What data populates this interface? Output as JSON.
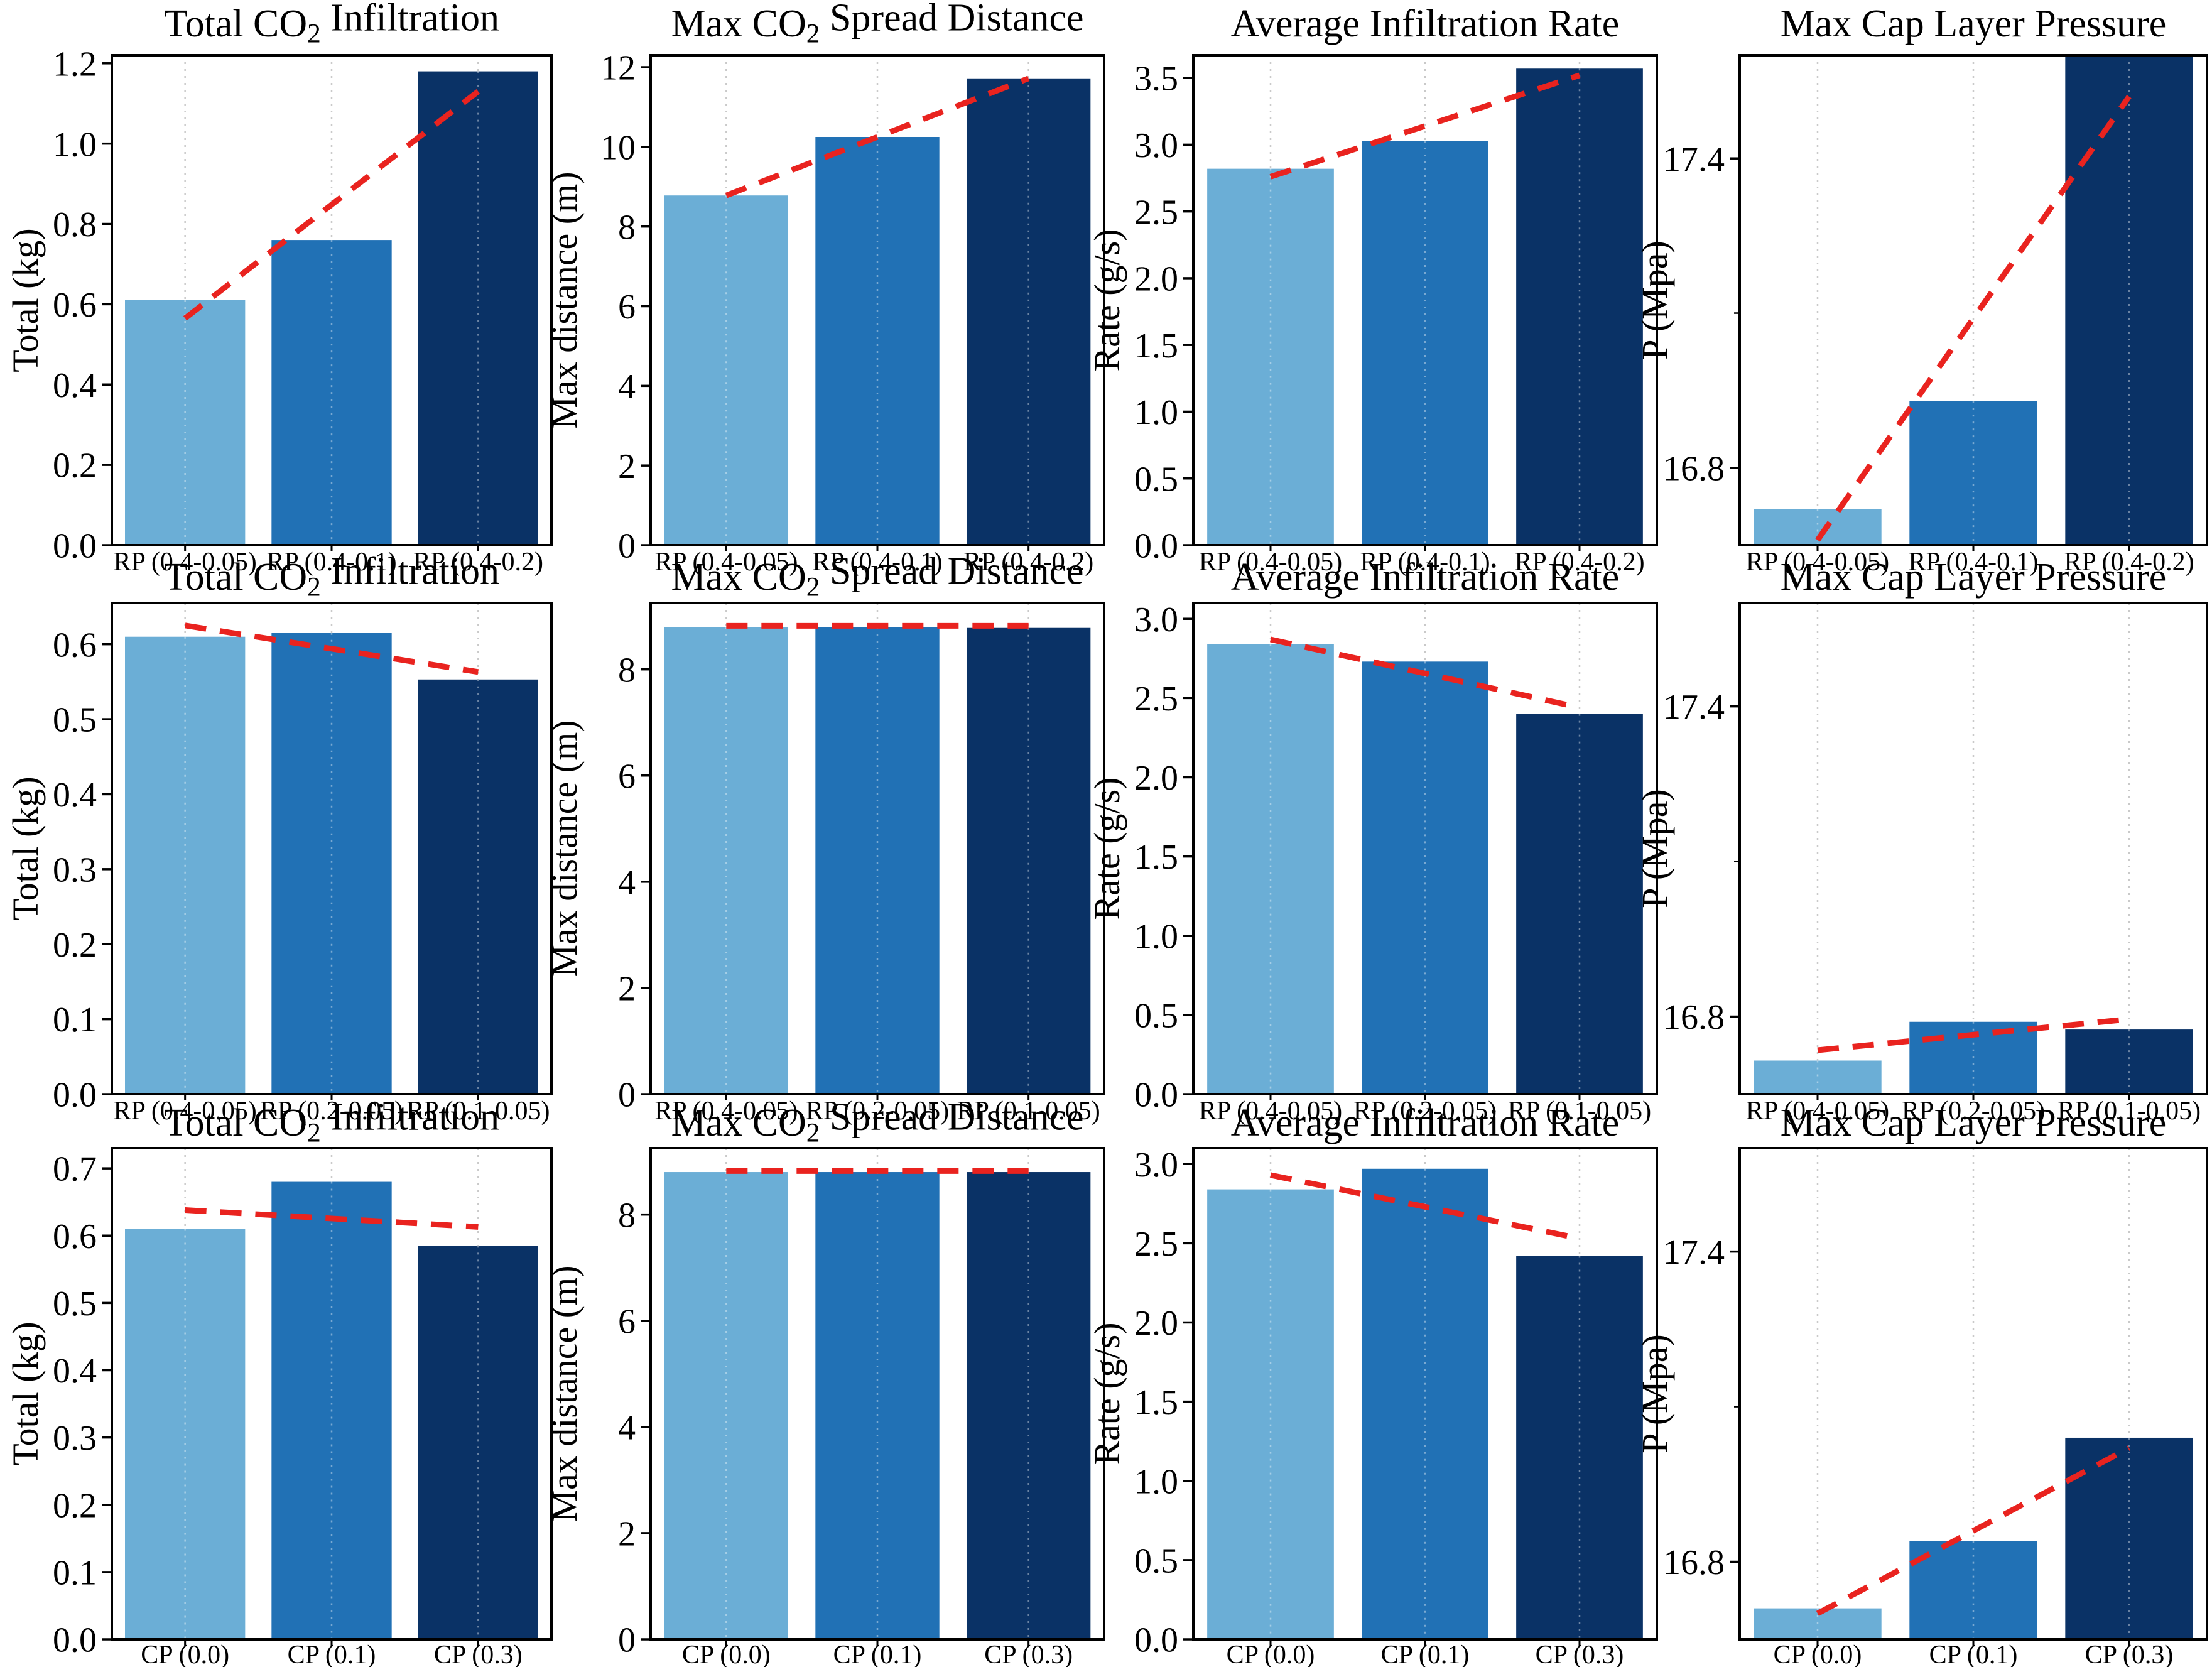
{
  "figure": {
    "background": "#ffffff",
    "bar_colors": [
      "#6baed6",
      "#2171b5",
      "#0a3266"
    ],
    "trend_color": "#e9231f",
    "grid_color": "#c9c9c9",
    "axis_color": "#000000",
    "text_color": "#000000"
  },
  "chart_data": [
    {
      "type": "bar",
      "title": "Total CO₂ Infiltration",
      "ylabel": "Total (kg)",
      "categories": [
        "RP (0.4-0.05)",
        "RP (0.4-0.1)",
        "RP (0.4-0.2)"
      ],
      "values": [
        0.61,
        0.76,
        1.18
      ],
      "yticks": [
        0,
        0.2,
        0.4,
        0.6,
        0.8,
        1.0,
        1.2
      ],
      "ytick_labels": [
        "0.0",
        "0.2",
        "0.4",
        "0.6",
        "0.8",
        "1.0",
        "1.2"
      ],
      "ylim": [
        0,
        1.22
      ],
      "trend": [
        0.565,
        0.848,
        1.13
      ],
      "legend_position": "none",
      "grid": "vertical-dotted"
    },
    {
      "type": "bar",
      "title": "Max CO₂ Spread Distance",
      "ylabel": "Max distance (m)",
      "categories": [
        "RP (0.4-0.05)",
        "RP (0.4-0.1)",
        "RP (0.4-0.2)"
      ],
      "values": [
        8.78,
        10.25,
        11.72
      ],
      "yticks": [
        0,
        2,
        4,
        6,
        8,
        10,
        12
      ],
      "ytick_labels": [
        "0",
        "2",
        "4",
        "6",
        "8",
        "10",
        "12"
      ],
      "ylim": [
        0,
        12.3
      ],
      "trend": [
        8.78,
        10.25,
        11.72
      ],
      "legend_position": "none",
      "grid": "vertical-dotted"
    },
    {
      "type": "bar",
      "title": "Average Infiltration Rate",
      "ylabel": "Rate (g/s)",
      "categories": [
        "RP (0.4-0.05)",
        "RP (0.4-0.1)",
        "RP (0.4-0.2)"
      ],
      "values": [
        2.82,
        3.03,
        3.57
      ],
      "yticks": [
        0,
        0.5,
        1.0,
        1.5,
        2.0,
        2.5,
        3.0,
        3.5
      ],
      "ytick_labels": [
        "0.0",
        "0.5",
        "1.0",
        "1.5",
        "2.0",
        "2.5",
        "3.0",
        "3.5"
      ],
      "ylim": [
        0,
        3.67
      ],
      "trend": [
        2.76,
        3.14,
        3.52
      ],
      "legend_position": "none",
      "grid": "vertical-dotted"
    },
    {
      "type": "bar",
      "title": "Max Cap Layer Pressure",
      "ylabel": "P (Mpa)",
      "categories": [
        "RP (0.4-0.05)",
        "RP (0.4-0.1)",
        "RP (0.4-0.2)"
      ],
      "values": [
        16.72,
        16.93,
        17.72
      ],
      "yticks": [
        16.8,
        17.4
      ],
      "ytick_labels": [
        "16.8",
        "17.4"
      ],
      "ylim": [
        16.65,
        17.6
      ],
      "trend": [
        16.66,
        17.09,
        17.52
      ],
      "legend_position": "none",
      "grid": "vertical-dotted"
    },
    {
      "type": "bar",
      "title": "Total CO₂ Infiltration",
      "ylabel": "Total (kg)",
      "categories": [
        "RP (0.4-0.05)",
        "RP (0.2-0.05)",
        "RP (0.1-0.05)"
      ],
      "values": [
        0.61,
        0.615,
        0.553
      ],
      "yticks": [
        0,
        0.1,
        0.2,
        0.3,
        0.4,
        0.5,
        0.6
      ],
      "ytick_labels": [
        "0.0",
        "0.1",
        "0.2",
        "0.3",
        "0.4",
        "0.5",
        "0.6"
      ],
      "ylim": [
        0,
        0.655
      ],
      "trend": [
        0.625,
        0.594,
        0.563
      ],
      "legend_position": "none",
      "grid": "vertical-dotted"
    },
    {
      "type": "bar",
      "title": "Max CO₂ Spread Distance",
      "ylabel": "Max distance (m)",
      "categories": [
        "RP (0.4-0.05)",
        "RP (0.2-0.05)",
        "RP (0.1-0.05)"
      ],
      "values": [
        8.8,
        8.8,
        8.78
      ],
      "yticks": [
        0,
        2,
        4,
        6,
        8
      ],
      "ytick_labels": [
        "0",
        "2",
        "4",
        "6",
        "8"
      ],
      "ylim": [
        0,
        9.25
      ],
      "trend": [
        8.82,
        8.82,
        8.82
      ],
      "legend_position": "none",
      "grid": "vertical-dotted"
    },
    {
      "type": "bar",
      "title": "Average Infiltration Rate",
      "ylabel": "Rate (g/s)",
      "categories": [
        "RP (0.4-0.05)",
        "RP (0.2-0.05)",
        "RP (0.1-0.05)"
      ],
      "values": [
        2.84,
        2.73,
        2.4
      ],
      "yticks": [
        0,
        0.5,
        1.0,
        1.5,
        2.0,
        2.5,
        3.0
      ],
      "ytick_labels": [
        "0.0",
        "0.5",
        "1.0",
        "1.5",
        "2.0",
        "2.5",
        "3.0"
      ],
      "ylim": [
        0,
        3.1
      ],
      "trend": [
        2.87,
        2.655,
        2.44
      ],
      "legend_position": "none",
      "grid": "vertical-dotted"
    },
    {
      "type": "bar",
      "title": "Max Cap Layer Pressure",
      "ylabel": "P (Mpa)",
      "categories": [
        "RP (0.4-0.05)",
        "RP (0.2-0.05)",
        "RP (0.1-0.05)"
      ],
      "values": [
        16.715,
        16.79,
        16.775
      ],
      "yticks": [
        16.8,
        17.4
      ],
      "ytick_labels": [
        "16.8",
        "17.4"
      ],
      "ylim": [
        16.65,
        17.6
      ],
      "trend": [
        16.735,
        16.765,
        16.795
      ],
      "legend_position": "none",
      "grid": "vertical-dotted"
    },
    {
      "type": "bar",
      "title": "Total CO₂ Infiltration",
      "ylabel": "Total (kg)",
      "categories": [
        "CP (0.0)",
        "CP (0.1)",
        "CP (0.3)"
      ],
      "values": [
        0.61,
        0.68,
        0.585
      ],
      "yticks": [
        0,
        0.1,
        0.2,
        0.3,
        0.4,
        0.5,
        0.6,
        0.7
      ],
      "ytick_labels": [
        "0.0",
        "0.1",
        "0.2",
        "0.3",
        "0.4",
        "0.5",
        "0.6",
        "0.7"
      ],
      "ylim": [
        0,
        0.73
      ],
      "trend": [
        0.638,
        0.6255,
        0.613
      ],
      "legend_position": "none",
      "grid": "vertical-dotted"
    },
    {
      "type": "bar",
      "title": "Max CO₂ Spread Distance",
      "ylabel": "Max distance (m)",
      "categories": [
        "CP (0.0)",
        "CP (0.1)",
        "CP (0.3)"
      ],
      "values": [
        8.8,
        8.8,
        8.8
      ],
      "yticks": [
        0,
        2,
        4,
        6,
        8
      ],
      "ytick_labels": [
        "0",
        "2",
        "4",
        "6",
        "8"
      ],
      "ylim": [
        0,
        9.25
      ],
      "trend": [
        8.82,
        8.82,
        8.82
      ],
      "legend_position": "none",
      "grid": "vertical-dotted"
    },
    {
      "type": "bar",
      "title": "Average Infiltration Rate",
      "ylabel": "Rate (g/s)",
      "categories": [
        "CP (0.0)",
        "CP (0.1)",
        "CP (0.3)"
      ],
      "values": [
        2.84,
        2.97,
        2.42
      ],
      "yticks": [
        0,
        0.5,
        1.0,
        1.5,
        2.0,
        2.5,
        3.0
      ],
      "ytick_labels": [
        "0.0",
        "0.5",
        "1.0",
        "1.5",
        "2.0",
        "2.5",
        "3.0"
      ],
      "ylim": [
        0,
        3.1
      ],
      "trend": [
        2.93,
        2.73,
        2.53
      ],
      "legend_position": "none",
      "grid": "vertical-dotted"
    },
    {
      "type": "bar",
      "title": "Max Cap Layer Pressure",
      "ylabel": "P (Mpa)",
      "categories": [
        "CP (0.0)",
        "CP (0.1)",
        "CP (0.3)"
      ],
      "values": [
        16.71,
        16.84,
        17.04
      ],
      "yticks": [
        16.8,
        17.4
      ],
      "ytick_labels": [
        "16.8",
        "17.4"
      ],
      "ylim": [
        16.65,
        17.6
      ],
      "trend": [
        16.7,
        16.86,
        17.02
      ],
      "legend_position": "none",
      "grid": "vertical-dotted"
    }
  ]
}
